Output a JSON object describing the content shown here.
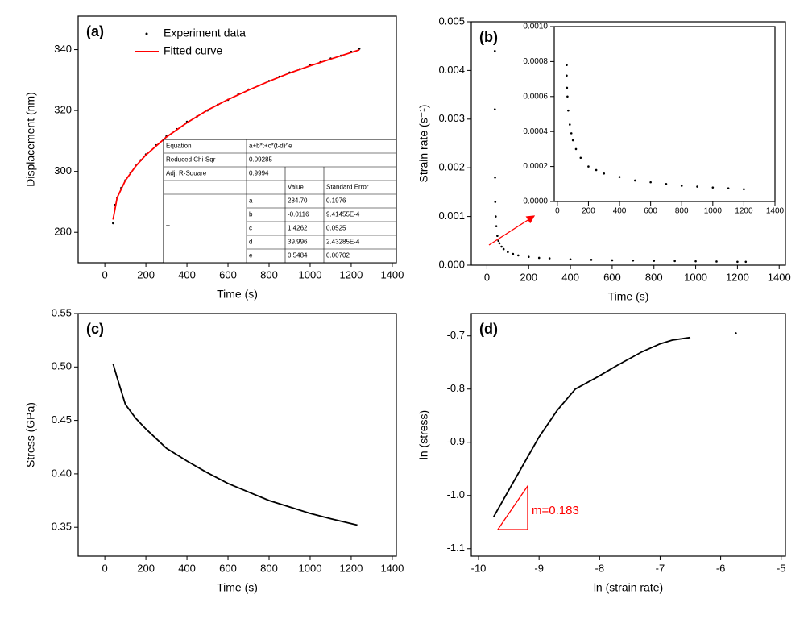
{
  "chart_data": [
    {
      "type": "scatter",
      "title": "(a)",
      "x_label": "Time (s)",
      "y_label": "Displacement (nm)",
      "xlim": [
        -130,
        1420
      ],
      "ylim": [
        270,
        351
      ],
      "xticks": [
        0,
        200,
        400,
        600,
        800,
        1000,
        1200,
        1400
      ],
      "yticks": [
        280,
        300,
        320,
        340
      ],
      "legend": "upper left",
      "series": [
        {
          "name": "Experiment data",
          "color": "#000000",
          "marker": "dot",
          "x": [
            40,
            50,
            60,
            80,
            100,
            125,
            150,
            175,
            200,
            250,
            300,
            350,
            400,
            450,
            500,
            550,
            600,
            650,
            700,
            750,
            800,
            850,
            900,
            950,
            1000,
            1050,
            1100,
            1150,
            1200,
            1240
          ],
          "values": [
            283.0,
            289.0,
            291.3,
            294.6,
            297.1,
            299.6,
            301.9,
            303.7,
            305.6,
            308.6,
            311.5,
            313.9,
            316.3,
            318.1,
            320.0,
            321.9,
            323.5,
            325.3,
            326.9,
            328.2,
            329.7,
            331.1,
            332.5,
            333.6,
            334.9,
            335.9,
            337.1,
            338.0,
            339.3,
            340.3
          ]
        },
        {
          "name": "Fitted curve",
          "color": "#ff0000",
          "marker": "line",
          "x": [
            40,
            60,
            100,
            150,
            200,
            300,
            400,
            500,
            600,
            700,
            800,
            900,
            1000,
            1100,
            1240
          ],
          "values": [
            284.2,
            291.4,
            297.0,
            301.7,
            305.4,
            311.3,
            316.0,
            320.1,
            323.6,
            326.7,
            329.6,
            332.3,
            334.7,
            336.9,
            339.9
          ]
        }
      ],
      "fit_table": {
        "stats": [
          [
            "Equation",
            "a+b*t+c*(t-d)^e"
          ],
          [
            "Reduced Chi-Sqr",
            "0.09285"
          ],
          [
            "Adj. R-Square",
            "0.9994"
          ]
        ],
        "columns": [
          "Value",
          "Standard Error"
        ],
        "parameter": "T",
        "rows": [
          [
            "a",
            "284.70",
            "0.1976"
          ],
          [
            "b",
            "-0.0116",
            "9.41455E-4"
          ],
          [
            "c",
            "1.4262",
            "0.0525"
          ],
          [
            "d",
            "39.996",
            "2.43285E-4"
          ],
          [
            "e",
            "0.5484",
            "0.00702"
          ]
        ]
      }
    },
    {
      "type": "scatter",
      "title": "(b)",
      "x_label": "Time (s)",
      "y_label": "Strain rate (s⁻¹)",
      "xlim": [
        -75,
        1430
      ],
      "ylim": [
        0,
        0.005
      ],
      "xticks": [
        0,
        200,
        400,
        600,
        800,
        1000,
        1200,
        1400
      ],
      "yticks": [
        {
          "value": 0,
          "label": "0.000"
        },
        0.001,
        0.002,
        0.003,
        0.004,
        0.005
      ],
      "series": [
        {
          "color": "#000000",
          "marker": "dot",
          "x": [
            38,
            38,
            39,
            40,
            42,
            45,
            50,
            55,
            60,
            70,
            80,
            100,
            125,
            150,
            200,
            250,
            300,
            400,
            500,
            600,
            700,
            800,
            900,
            1000,
            1100,
            1200,
            1240
          ],
          "values": [
            0.0044,
            0.0032,
            0.0018,
            0.0013,
            0.001,
            0.0008,
            0.0006,
            0.0005,
            0.00045,
            0.00038,
            0.00033,
            0.00027,
            0.00023,
            0.0002,
            0.00017,
            0.00015,
            0.00014,
            0.00012,
            0.00011,
            0.0001,
            9.5e-05,
            9e-05,
            8.5e-05,
            8e-05,
            7.5e-05,
            7e-05,
            7e-05
          ]
        }
      ]
    },
    {
      "type": "scatter",
      "xlim": [
        -20,
        1400
      ],
      "ylim": [
        0,
        0.001
      ],
      "xticks": [
        0,
        200,
        400,
        600,
        800,
        1000,
        1200,
        1400
      ],
      "yticks": [
        {
          "value": 0,
          "label": "0.0000"
        },
        0.0002,
        0.0004,
        0.0006,
        0.0008,
        {
          "value": 0.001,
          "label": "0.0010"
        }
      ],
      "series": [
        {
          "color": "#000000",
          "marker": "dot",
          "x": [
            60,
            60,
            62,
            65,
            70,
            80,
            90,
            100,
            120,
            150,
            200,
            250,
            300,
            400,
            500,
            600,
            700,
            800,
            900,
            1000,
            1100,
            1200
          ],
          "values": [
            0.00078,
            0.00072,
            0.00065,
            0.0006,
            0.00052,
            0.00044,
            0.00039,
            0.00035,
            0.0003,
            0.00025,
            0.0002,
            0.00018,
            0.00016,
            0.00014,
            0.00012,
            0.00011,
            0.0001,
            9e-05,
            8.5e-05,
            8e-05,
            7.5e-05,
            7e-05
          ]
        }
      ]
    },
    {
      "type": "scatter",
      "title": "(c)",
      "x_label": "Time (s)",
      "y_label": "Stress (GPa)",
      "xlim": [
        -130,
        1420
      ],
      "ylim": [
        0.323,
        0.55
      ],
      "xticks": [
        0,
        200,
        400,
        600,
        800,
        1000,
        1200,
        1400
      ],
      "yticks": [
        0.35,
        {
          "value": 0.4,
          "label": "0.40"
        },
        0.45,
        {
          "value": 0.5,
          "label": "0.50"
        },
        0.55
      ],
      "series": [
        {
          "color": "#000000",
          "marker": "line",
          "x": [
            40,
            60,
            100,
            150,
            200,
            300,
            400,
            500,
            600,
            700,
            800,
            900,
            1000,
            1100,
            1230
          ],
          "values": [
            0.503,
            0.49,
            0.465,
            0.452,
            0.442,
            0.424,
            0.412,
            0.401,
            0.391,
            0.383,
            0.375,
            0.369,
            0.363,
            0.358,
            0.352
          ]
        }
      ]
    },
    {
      "type": "scatter",
      "title": "(d)",
      "x_label": "ln (strain rate)",
      "y_label": "ln (stress)",
      "xlim": [
        -10.12,
        -4.93
      ],
      "ylim": [
        -1.114,
        -0.658
      ],
      "xticks": [
        -10,
        -9,
        -8,
        -7,
        -6,
        -5
      ],
      "yticks": [
        -0.7,
        -0.8,
        -0.9,
        {
          "value": -1,
          "label": "-1.0"
        },
        -1.1
      ],
      "annotation": "m=0.183",
      "series": [
        {
          "color": "#000000",
          "marker": "line",
          "x": [
            -9.75,
            -9.5,
            -9.2,
            -9.0,
            -8.7,
            -8.4,
            -8.0,
            -7.7,
            -7.3,
            -7.0,
            -6.8,
            -6.5
          ],
          "values": [
            -1.04,
            -0.99,
            -0.93,
            -0.89,
            -0.84,
            -0.8,
            -0.775,
            -0.755,
            -0.73,
            -0.715,
            -0.708,
            -0.703
          ]
        },
        {
          "color": "#000000",
          "marker": "dot",
          "x": [
            -5.75
          ],
          "values": [
            -0.695
          ]
        }
      ]
    }
  ]
}
